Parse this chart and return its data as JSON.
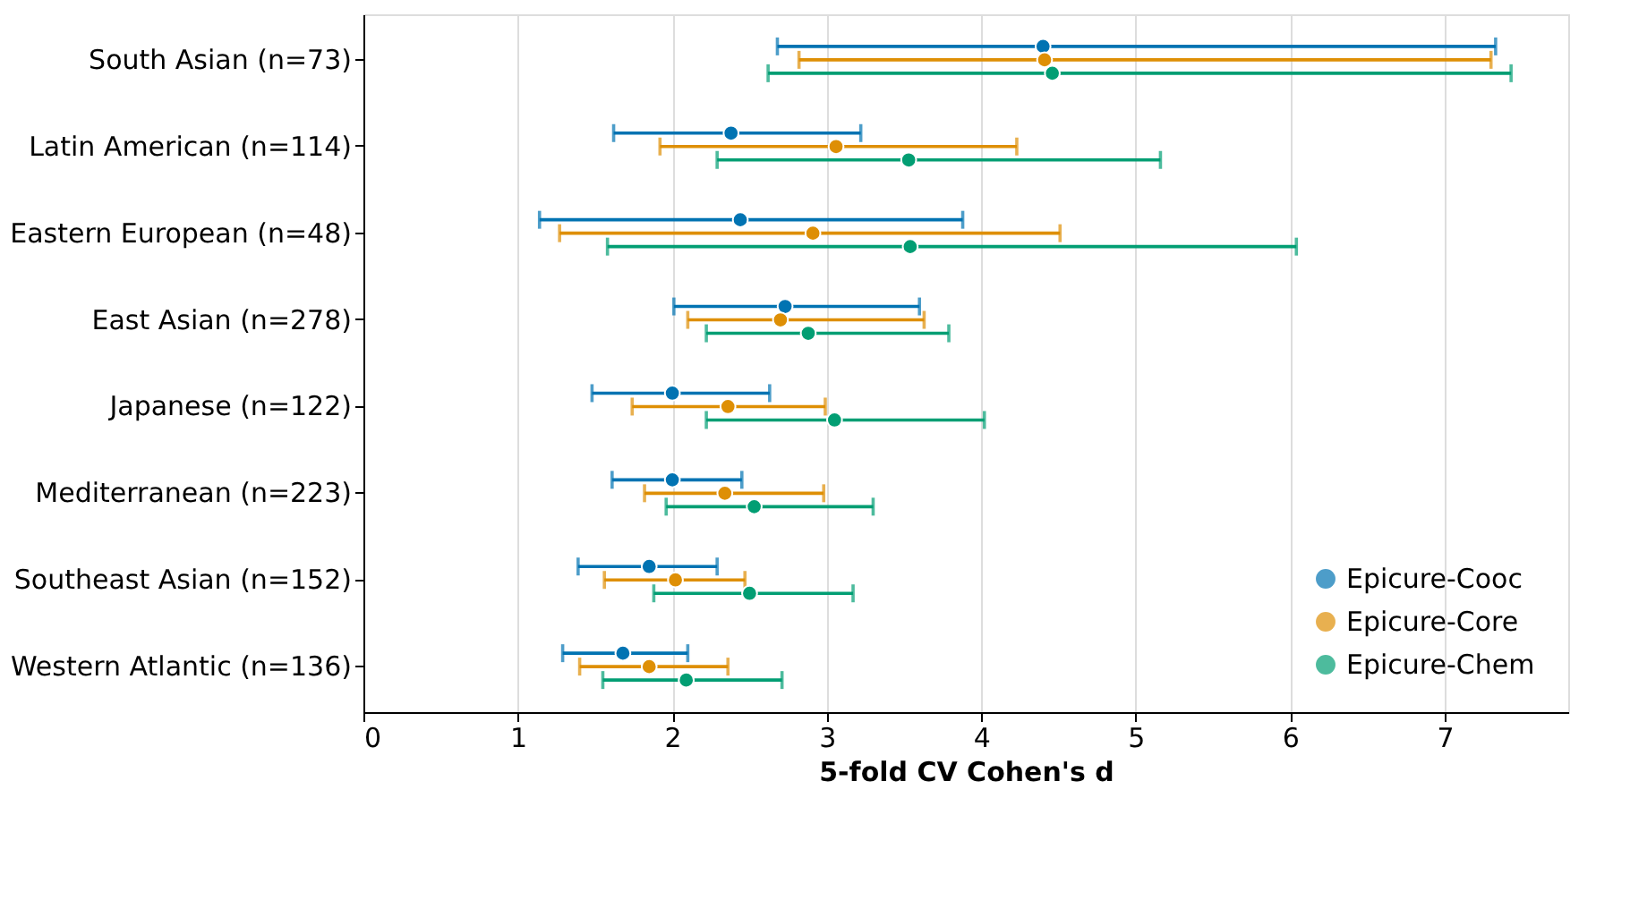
{
  "chart_data": {
    "type": "scatter",
    "orientation": "horizontal",
    "xlabel": "5-fold CV Cohen's d",
    "categories": [
      "South Asian (n=73)",
      "Latin American (n=114)",
      "Eastern European (n=48)",
      "East Asian (n=278)",
      "Japanese (n=122)",
      "Mediterranean (n=223)",
      "Southeast Asian (n=152)",
      "Western Atlantic (n=136)"
    ],
    "series": [
      {
        "name": "Epicure-Cooc",
        "color": "#0173b2",
        "values": [
          4.4,
          2.38,
          2.44,
          2.73,
          2.0,
          2.0,
          1.85,
          1.68
        ],
        "errors": [
          [
            2.68,
            7.33
          ],
          [
            1.62,
            3.22
          ],
          [
            1.14,
            3.88
          ],
          [
            2.01,
            3.6
          ],
          [
            1.48,
            2.63
          ],
          [
            1.61,
            2.45
          ],
          [
            1.39,
            2.29
          ],
          [
            1.29,
            2.1
          ]
        ]
      },
      {
        "name": "Epicure-Core",
        "color": "#de8f05",
        "values": [
          4.41,
          3.06,
          2.91,
          2.7,
          2.36,
          2.34,
          2.02,
          1.85
        ],
        "errors": [
          [
            2.82,
            7.3
          ],
          [
            1.92,
            4.23
          ],
          [
            1.27,
            4.51
          ],
          [
            2.1,
            3.63
          ],
          [
            1.74,
            2.99
          ],
          [
            1.82,
            2.98
          ],
          [
            1.56,
            2.47
          ],
          [
            1.4,
            2.36
          ]
        ]
      },
      {
        "name": "Epicure-Chem",
        "color": "#029e73",
        "values": [
          4.46,
          3.53,
          3.54,
          2.88,
          3.05,
          2.53,
          2.5,
          2.09
        ],
        "errors": [
          [
            2.62,
            7.43
          ],
          [
            2.29,
            5.16
          ],
          [
            1.58,
            6.04
          ],
          [
            2.22,
            3.79
          ],
          [
            2.22,
            4.02
          ],
          [
            1.96,
            3.3
          ],
          [
            1.88,
            3.17
          ],
          [
            1.55,
            2.71
          ]
        ]
      }
    ],
    "xlim": [
      0,
      7.8
    ],
    "xticks": [
      0,
      1,
      2,
      3,
      4,
      5,
      6,
      7
    ],
    "grid": "x",
    "legend": "bottom right",
    "marker": "circle"
  }
}
